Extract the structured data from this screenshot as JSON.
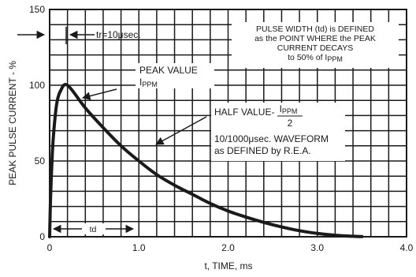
{
  "chart_data": {
    "type": "line",
    "title": "",
    "xlabel": "t, TIME, ms",
    "ylabel": "PEAK PULSE CURRENT - %",
    "xlim": [
      0,
      4.0
    ],
    "ylim": [
      0,
      150
    ],
    "x_ticks": [
      "0",
      "1.0",
      "2.0",
      "3.0",
      "4.0"
    ],
    "y_ticks": [
      "0",
      "50",
      "100",
      "150"
    ],
    "grid": true,
    "series": [
      {
        "x": [
          0,
          0.01,
          0.03,
          0.05,
          0.08,
          0.12,
          0.2,
          0.4,
          0.6,
          0.8,
          1.0,
          1.2,
          1.4,
          1.6,
          1.8,
          2.0,
          2.2,
          2.4,
          2.6,
          2.8,
          3.0,
          3.2,
          3.4,
          3.5
        ],
        "y": [
          0,
          25,
          55,
          72,
          88,
          96,
          100,
          85,
          72,
          60,
          50,
          41,
          34,
          28,
          22,
          17,
          13,
          9.5,
          6.5,
          4,
          2.2,
          1,
          0.3,
          0.1
        ]
      }
    ],
    "annotations": {
      "tr": "tr=10μsec.",
      "pulse_width_lines": [
        "PULSE WIDTH (td) is DEFINED",
        "as the POINT WHERE the PEAK",
        "CURRENT DECAYS",
        "to 50% of I"
      ],
      "pulse_width_sub": "PPM",
      "peak_value": "PEAK VALUE",
      "peak_ippm": "I",
      "peak_ippm_sub": "PPM",
      "half_value": "HALF VALUE-",
      "half_num": "I",
      "half_num_sub": "PPM",
      "half_den": "2",
      "waveform_lines": [
        "10/1000μsec. WAVEFORM",
        "as DEFINED by R.E.A."
      ],
      "td": "td"
    }
  }
}
